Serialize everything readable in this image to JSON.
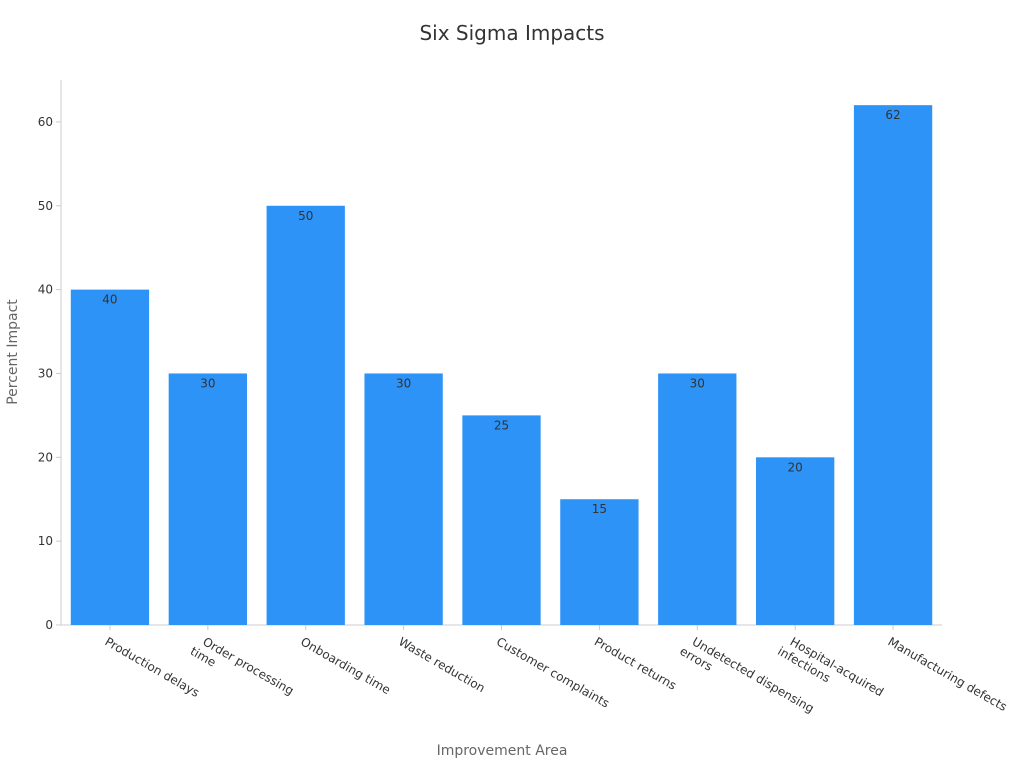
{
  "chart_data": {
    "type": "bar",
    "title": "Six Sigma Impacts",
    "xlabel": "Improvement Area",
    "ylabel": "Percent Impact",
    "categories": [
      "Production delays",
      "Order processing time",
      "Onboarding time",
      "Waste reduction",
      "Customer complaints",
      "Product returns",
      "Undetected dispensing errors",
      "Hospital-acquired infections",
      "Manufacturing defects"
    ],
    "tick_labels": [
      [
        "Production delays"
      ],
      [
        "Order processing",
        "time"
      ],
      [
        "Onboarding time"
      ],
      [
        "Waste reduction"
      ],
      [
        "Customer complaints"
      ],
      [
        "Product returns"
      ],
      [
        "Undetected dispensing",
        "errors"
      ],
      [
        "Hospital-acquired",
        "infections"
      ],
      [
        "Manufacturing defects"
      ]
    ],
    "values": [
      40,
      30,
      50,
      30,
      25,
      15,
      30,
      20,
      62
    ],
    "ylim": [
      0,
      65
    ],
    "yticks": [
      0,
      10,
      20,
      30,
      40,
      50,
      60
    ],
    "grid": false,
    "bar_color": "#2e93f7",
    "text_color": "#333333",
    "axis_color": "#cccccc"
  }
}
